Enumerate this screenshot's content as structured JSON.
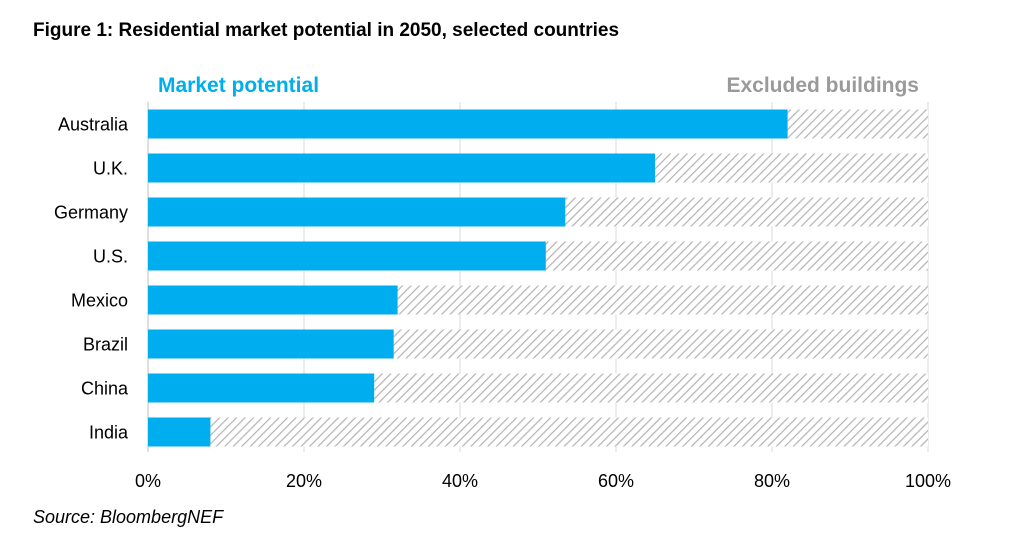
{
  "figure": {
    "title": "Figure 1: Residential market potential in 2050, selected countries",
    "source": "Source: BloombergNEF"
  },
  "colors": {
    "market_potential": "#00AEEF",
    "excluded_hatch": "#B3B3B3",
    "market_label": "#00AEEF",
    "excluded_label": "#9A9A9A",
    "grid": "#D9D9D9"
  },
  "chart_data": {
    "type": "bar",
    "orientation": "horizontal",
    "stacked": true,
    "categories": [
      "Australia",
      "U.K.",
      "Germany",
      "U.S.",
      "Mexico",
      "Brazil",
      "China",
      "India"
    ],
    "series": [
      {
        "name": "Market potential",
        "values": [
          82,
          65,
          53.5,
          51,
          32,
          31.5,
          29,
          8
        ]
      },
      {
        "name": "Excluded buildings",
        "values": [
          18,
          35,
          46.5,
          49,
          68,
          68.5,
          71,
          92
        ]
      }
    ],
    "xlim": [
      0,
      100
    ],
    "x_ticks": [
      "0%",
      "20%",
      "40%",
      "60%",
      "80%",
      "100%"
    ],
    "grid": true,
    "legend": "top, labels above bars"
  }
}
